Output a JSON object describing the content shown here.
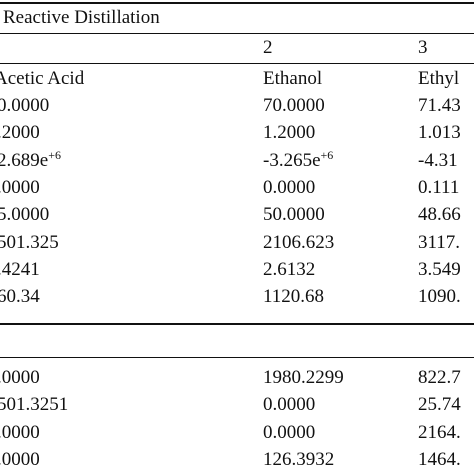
{
  "table": {
    "title": "Reactive Distillation",
    "column_numbers": [
      "2",
      "3"
    ],
    "column_names": [
      "Acetic Acid",
      "Ethanol",
      "Ethyl"
    ],
    "rows": [
      [
        "0.0000",
        "70.0000",
        "71.43"
      ],
      [
        ".2000",
        "1.2000",
        "1.013"
      ],
      [
        {
          "text": "2.689e",
          "sup": "+6"
        },
        {
          "text": "-3.265e",
          "sup": "+6"
        },
        "-4.31"
      ],
      [
        ".0000",
        "0.0000",
        "0.111"
      ],
      [
        "5.0000",
        "50.0000",
        "48.66"
      ],
      [
        "501.325",
        "2106.623",
        "3117."
      ],
      [
        ".4241",
        "2.6132",
        "3.549"
      ],
      [
        "60.34",
        "1120.68",
        "1090."
      ]
    ],
    "rows2": [
      [
        ".0000",
        "1980.2299",
        "822.7"
      ],
      [
        "501.3251",
        "0.0000",
        "25.74"
      ],
      [
        ".0000",
        "0.0000",
        "2164."
      ],
      [
        ".0000",
        "126.3932",
        "1464."
      ]
    ]
  }
}
